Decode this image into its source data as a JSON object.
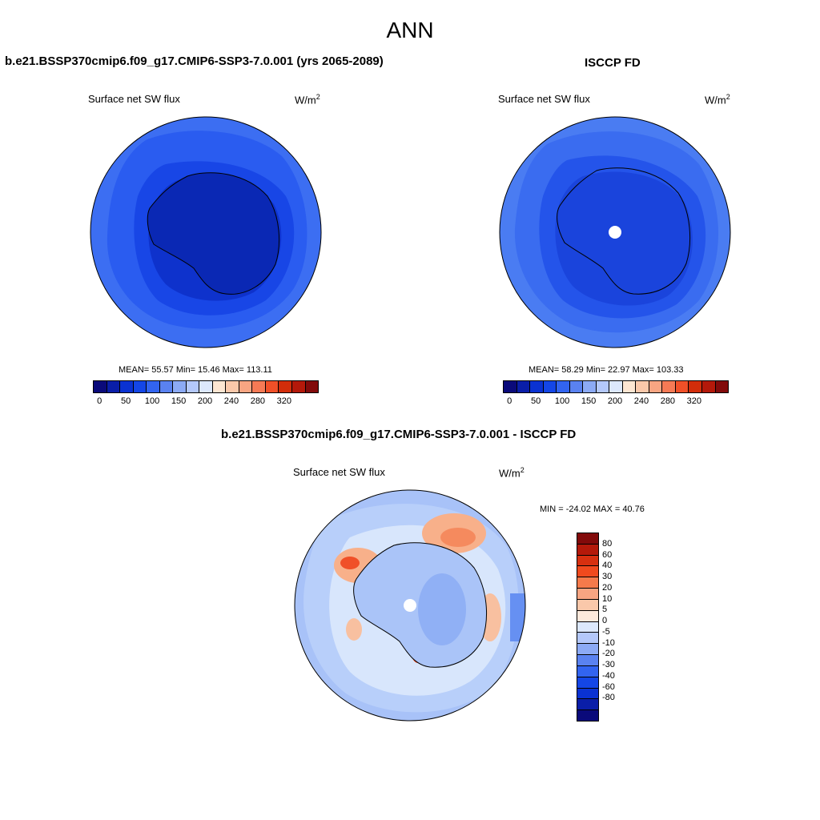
{
  "title": "ANN",
  "panel_left": {
    "title": "b.e21.BSSP370cmip6.f09_g17.CMIP6-SSP3-7.0.001 (yrs 2065-2089)",
    "variable": "Surface net SW flux",
    "units_base": "W/m",
    "units_exp": "2",
    "stats": "MEAN=  55.57  Min=  15.46  Max= 113.11"
  },
  "panel_right": {
    "title": "ISCCP FD",
    "variable": "Surface net SW flux",
    "units_base": "W/m",
    "units_exp": "2",
    "stats": "MEAN=  58.29  Min=  22.97  Max= 103.33"
  },
  "panel_diff": {
    "title": "b.e21.BSSP370cmip6.f09_g17.CMIP6-SSP3-7.0.001 - ISCCP FD",
    "variable": "Surface net SW flux",
    "units_base": "W/m",
    "units_exp": "2",
    "stats": "MIN = -24.02 MAX =  40.76"
  },
  "colorbar_main": {
    "colors": [
      "#0a0a7a",
      "#0a1ea8",
      "#0a32d2",
      "#1446e6",
      "#3264f0",
      "#5a82f0",
      "#8caaf5",
      "#b4c8fa",
      "#dce8fc",
      "#fde6d2",
      "#fac8aa",
      "#f8a582",
      "#f57a55",
      "#f05028",
      "#d22d0a",
      "#b4190a",
      "#820a0a"
    ],
    "tick_labels": [
      "0",
      "50",
      "100",
      "150",
      "200",
      "240",
      "280",
      "320"
    ]
  },
  "colorbar_diff": {
    "colors": [
      "#820a0a",
      "#b4190a",
      "#d73010",
      "#f04a1e",
      "#f57a4b",
      "#f8a582",
      "#fac8aa",
      "#fde9dc",
      "#dce8fc",
      "#b4c8fa",
      "#8caaf5",
      "#5a82f0",
      "#3264f0",
      "#1446e6",
      "#0a32d2",
      "#0a1ea8",
      "#0a0a7a"
    ],
    "tick_labels": [
      "80",
      "60",
      "40",
      "30",
      "20",
      "10",
      "5",
      "0",
      "-5",
      "-10",
      "-20",
      "-30",
      "-40",
      "-60",
      "-80"
    ]
  }
}
